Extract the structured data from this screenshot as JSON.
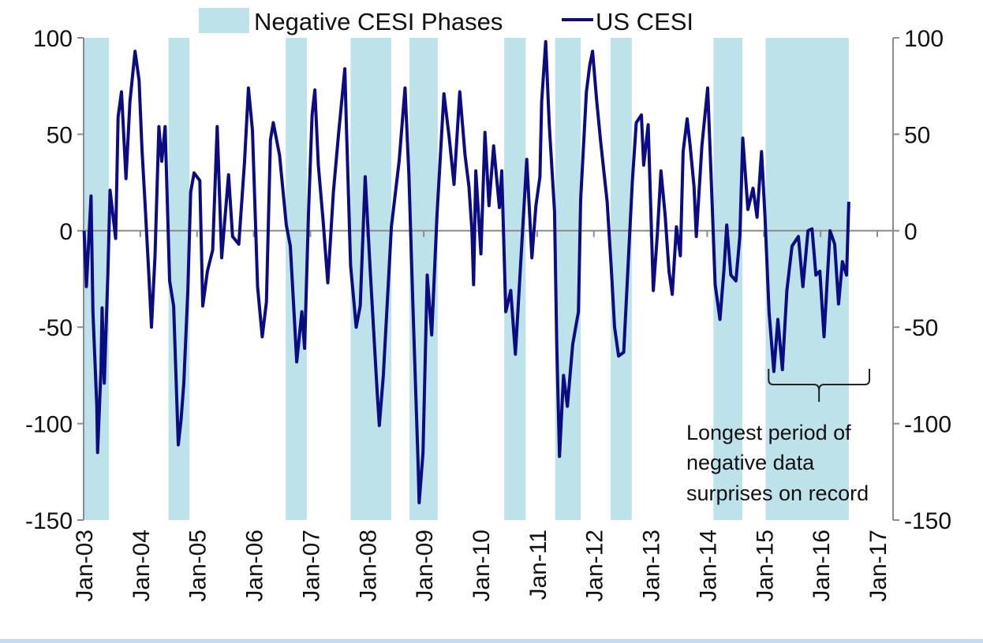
{
  "chart_data": {
    "type": "line",
    "title": "",
    "xlabel": "",
    "ylabel": "",
    "ylim": [
      -150,
      100
    ],
    "yticks": [
      100,
      50,
      0,
      -50,
      -100,
      -150
    ],
    "y_axes": "left and right (same scale)",
    "xlim": [
      "2003-01-01",
      "2017-01-01"
    ],
    "xtick_labels": [
      "Jan-03",
      "Jan-04",
      "Jan-05",
      "Jan-06",
      "Jan-07",
      "Jan-08",
      "Jan-09",
      "Jan-10",
      "Jan-11",
      "Jan-12",
      "Jan-13",
      "Jan-14",
      "Jan-15",
      "Jan-16",
      "Jan-17"
    ],
    "grid": false,
    "legend_position": "top-center",
    "legend": [
      "Negative CESI Phases",
      "US CESI"
    ],
    "colors": {
      "shade": "#bde2ea",
      "line": "#0c0c82",
      "axis": "#8c8c8c"
    },
    "shaded_regions": {
      "name": "Negative CESI Phases",
      "ranges": [
        [
          "2003-01-04",
          "2003-06-13"
        ],
        [
          "2004-07-01",
          "2004-11-14"
        ],
        [
          "2006-07-26",
          "2006-12-09"
        ],
        [
          "2007-09-17",
          "2008-06-06"
        ],
        [
          "2008-10-01",
          "2009-04-01"
        ],
        [
          "2010-06-03",
          "2010-10-19"
        ],
        [
          "2011-04-27",
          "2011-10-08"
        ],
        [
          "2012-04-19",
          "2012-09-02"
        ],
        [
          "2014-02-10",
          "2014-08-15"
        ],
        [
          "2015-01-12",
          "2016-07-01"
        ]
      ]
    },
    "series": [
      {
        "name": "US CESI",
        "points": [
          [
            "2003-01-04",
            0
          ],
          [
            "2003-01-19",
            -29
          ],
          [
            "2003-02-18",
            18
          ],
          [
            "2003-03-02",
            -42
          ],
          [
            "2003-03-27",
            -91
          ],
          [
            "2003-04-01",
            -115
          ],
          [
            "2003-04-23",
            -72
          ],
          [
            "2003-04-30",
            -40
          ],
          [
            "2003-05-14",
            -79
          ],
          [
            "2003-06-06",
            -23
          ],
          [
            "2003-06-20",
            21
          ],
          [
            "2003-07-26",
            -4
          ],
          [
            "2003-08-11",
            59
          ],
          [
            "2003-09-02",
            72
          ],
          [
            "2003-10-01",
            27
          ],
          [
            "2003-10-26",
            67
          ],
          [
            "2003-11-28",
            93
          ],
          [
            "2003-12-24",
            78
          ],
          [
            "2004-01-12",
            42
          ],
          [
            "2004-01-30",
            16
          ],
          [
            "2004-02-25",
            -23
          ],
          [
            "2004-03-13",
            -50
          ],
          [
            "2004-04-05",
            -13
          ],
          [
            "2004-04-30",
            54
          ],
          [
            "2004-05-18",
            36
          ],
          [
            "2004-06-09",
            54
          ],
          [
            "2004-07-08",
            -26
          ],
          [
            "2004-08-03",
            -39
          ],
          [
            "2004-09-02",
            -111
          ],
          [
            "2004-09-20",
            -98
          ],
          [
            "2004-10-08",
            -79
          ],
          [
            "2004-11-03",
            -31
          ],
          [
            "2004-11-21",
            20
          ],
          [
            "2004-12-13",
            30
          ],
          [
            "2005-01-19",
            26
          ],
          [
            "2005-02-07",
            -39
          ],
          [
            "2005-03-09",
            -21
          ],
          [
            "2005-04-12",
            -10
          ],
          [
            "2005-05-11",
            54
          ],
          [
            "2005-06-09",
            -14
          ],
          [
            "2005-07-23",
            29
          ],
          [
            "2005-08-18",
            -3
          ],
          [
            "2005-09-27",
            -7
          ],
          [
            "2005-11-03",
            36
          ],
          [
            "2005-11-28",
            74
          ],
          [
            "2005-12-24",
            52
          ],
          [
            "2006-01-26",
            -29
          ],
          [
            "2006-02-25",
            -55
          ],
          [
            "2006-03-24",
            -37
          ],
          [
            "2006-04-19",
            47
          ],
          [
            "2006-05-07",
            56
          ],
          [
            "2006-06-17",
            39
          ],
          [
            "2006-07-30",
            3
          ],
          [
            "2006-08-25",
            -8
          ],
          [
            "2006-09-20",
            -46
          ],
          [
            "2006-10-05",
            -68
          ],
          [
            "2006-11-07",
            -42
          ],
          [
            "2006-11-25",
            -61
          ],
          [
            "2006-12-20",
            10
          ],
          [
            "2007-01-12",
            60
          ],
          [
            "2007-01-30",
            73
          ],
          [
            "2007-02-21",
            34
          ],
          [
            "2007-03-24",
            5
          ],
          [
            "2007-04-23",
            -27
          ],
          [
            "2007-05-29",
            20
          ],
          [
            "2007-07-01",
            50
          ],
          [
            "2007-08-11",
            84
          ],
          [
            "2007-08-21",
            54
          ],
          [
            "2007-09-17",
            -18
          ],
          [
            "2007-10-23",
            -50
          ],
          [
            "2007-11-18",
            -39
          ],
          [
            "2007-12-20",
            28
          ],
          [
            "2008-01-23",
            -23
          ],
          [
            "2008-03-06",
            -83
          ],
          [
            "2008-03-20",
            -101
          ],
          [
            "2008-04-15",
            -75
          ],
          [
            "2008-06-06",
            2
          ],
          [
            "2008-07-26",
            36
          ],
          [
            "2008-09-02",
            74
          ],
          [
            "2008-09-27",
            29
          ],
          [
            "2008-10-23",
            -39
          ],
          [
            "2008-11-25",
            -120
          ],
          [
            "2008-12-02",
            -141
          ],
          [
            "2008-12-27",
            -115
          ],
          [
            "2009-01-23",
            -23
          ],
          [
            "2009-02-21",
            -54
          ],
          [
            "2009-03-27",
            8
          ],
          [
            "2009-05-11",
            71
          ],
          [
            "2009-06-13",
            49
          ],
          [
            "2009-07-15",
            24
          ],
          [
            "2009-08-21",
            72
          ],
          [
            "2009-09-24",
            39
          ],
          [
            "2009-10-19",
            23
          ],
          [
            "2009-11-07",
            0
          ],
          [
            "2009-11-18",
            -28
          ],
          [
            "2009-12-02",
            31
          ],
          [
            "2010-01-04",
            -12
          ],
          [
            "2010-01-30",
            51
          ],
          [
            "2010-02-25",
            13
          ],
          [
            "2010-03-27",
            44
          ],
          [
            "2010-05-03",
            12
          ],
          [
            "2010-05-18",
            31
          ],
          [
            "2010-06-13",
            -42
          ],
          [
            "2010-07-15",
            -31
          ],
          [
            "2010-08-14",
            -64
          ],
          [
            "2010-09-24",
            -7
          ],
          [
            "2010-10-26",
            37
          ],
          [
            "2010-11-28",
            -14
          ],
          [
            "2010-12-24",
            13
          ],
          [
            "2011-01-19",
            28
          ],
          [
            "2011-01-30",
            67
          ],
          [
            "2011-02-25",
            98
          ],
          [
            "2011-03-20",
            55
          ],
          [
            "2011-04-23",
            10
          ],
          [
            "2011-05-07",
            -59
          ],
          [
            "2011-05-25",
            -117
          ],
          [
            "2011-06-20",
            -75
          ],
          [
            "2011-07-15",
            -91
          ],
          [
            "2011-08-18",
            -59
          ],
          [
            "2011-09-24",
            -42
          ],
          [
            "2011-10-08",
            16
          ],
          [
            "2011-11-14",
            72
          ],
          [
            "2011-12-06",
            86
          ],
          [
            "2011-12-24",
            93
          ],
          [
            "2012-01-19",
            68
          ],
          [
            "2012-02-14",
            46
          ],
          [
            "2012-03-27",
            15
          ],
          [
            "2012-04-23",
            -20
          ],
          [
            "2012-05-14",
            -50
          ],
          [
            "2012-06-09",
            -65
          ],
          [
            "2012-07-12",
            -63
          ],
          [
            "2012-08-11",
            -15
          ],
          [
            "2012-09-06",
            26
          ],
          [
            "2012-10-01",
            56
          ],
          [
            "2012-11-03",
            60
          ],
          [
            "2012-11-18",
            34
          ],
          [
            "2012-12-17",
            55
          ],
          [
            "2013-01-19",
            -31
          ],
          [
            "2013-02-14",
            -2
          ],
          [
            "2013-03-09",
            31
          ],
          [
            "2013-04-05",
            8
          ],
          [
            "2013-04-30",
            -21
          ],
          [
            "2013-05-21",
            -33
          ],
          [
            "2013-06-17",
            2
          ],
          [
            "2013-07-12",
            -13
          ],
          [
            "2013-07-30",
            41
          ],
          [
            "2013-08-25",
            58
          ],
          [
            "2013-09-13",
            44
          ],
          [
            "2013-10-08",
            23
          ],
          [
            "2013-10-23",
            -3
          ],
          [
            "2013-11-28",
            44
          ],
          [
            "2014-01-04",
            74
          ],
          [
            "2014-01-26",
            28
          ],
          [
            "2014-02-21",
            -28
          ],
          [
            "2014-03-24",
            -46
          ],
          [
            "2014-04-19",
            -20
          ],
          [
            "2014-05-07",
            3
          ],
          [
            "2014-06-02",
            -23
          ],
          [
            "2014-07-05",
            -26
          ],
          [
            "2014-07-30",
            -3
          ],
          [
            "2014-08-18",
            48
          ],
          [
            "2014-09-20",
            11
          ],
          [
            "2014-10-23",
            22
          ],
          [
            "2014-11-18",
            7
          ],
          [
            "2014-12-17",
            41
          ],
          [
            "2015-01-08",
            7
          ],
          [
            "2015-02-03",
            -42
          ],
          [
            "2015-03-06",
            -73
          ],
          [
            "2015-04-01",
            -46
          ],
          [
            "2015-04-30",
            -72
          ],
          [
            "2015-05-29",
            -31
          ],
          [
            "2015-07-01",
            -8
          ],
          [
            "2015-08-11",
            -3
          ],
          [
            "2015-09-09",
            -29
          ],
          [
            "2015-10-12",
            0
          ],
          [
            "2015-11-07",
            1
          ],
          [
            "2015-12-02",
            -23
          ],
          [
            "2015-12-27",
            -21
          ],
          [
            "2016-01-23",
            -55
          ],
          [
            "2016-03-02",
            0
          ],
          [
            "2016-04-01",
            -7
          ],
          [
            "2016-04-26",
            -38
          ],
          [
            "2016-05-21",
            -16
          ],
          [
            "2016-06-17",
            -23
          ],
          [
            "2016-07-01",
            15
          ]
        ]
      }
    ],
    "annotation": {
      "lines": [
        "Longest period of",
        "negative data",
        "surprises on record"
      ],
      "span": [
        "2015-01-01",
        "2016-11-01"
      ]
    }
  }
}
